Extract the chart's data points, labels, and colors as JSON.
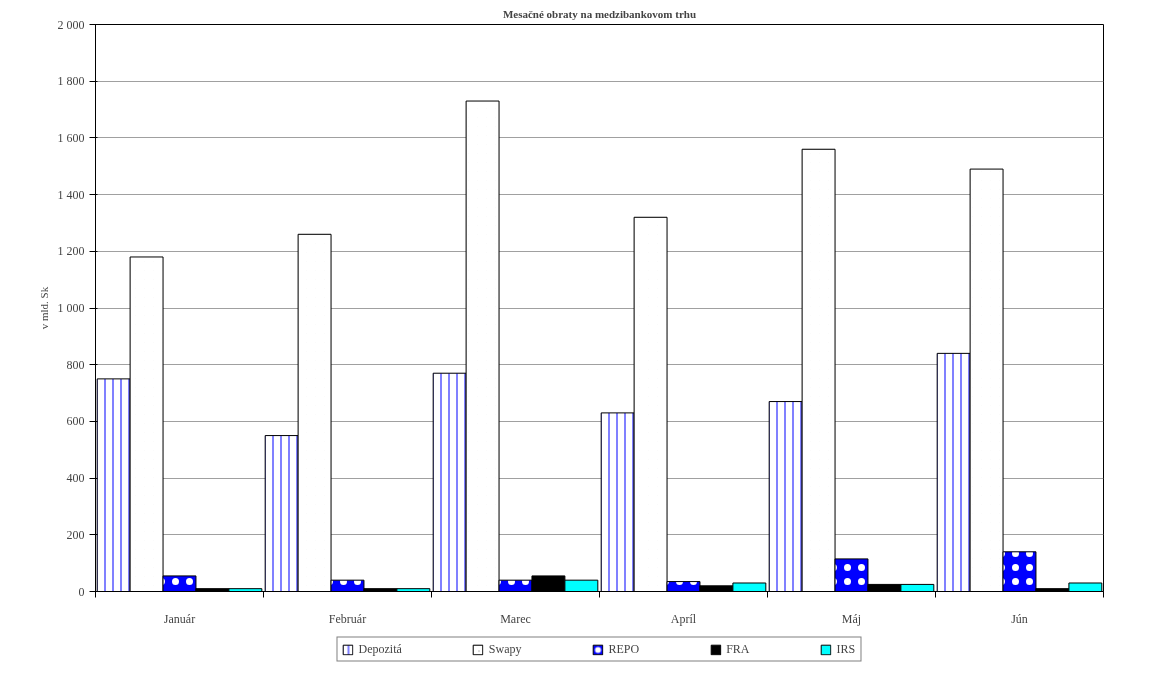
{
  "chart_data": {
    "type": "bar",
    "title": "Mesačné obraty na medzibankovom trhu",
    "ylabel": "v mld. Sk",
    "categories": [
      "Január",
      "Február",
      "Marec",
      "Apríl",
      "Máj",
      "Jún"
    ],
    "series": [
      {
        "name": "Depozitá",
        "color": "#8080ff",
        "values": [
          750,
          550,
          770,
          630,
          670,
          840
        ]
      },
      {
        "name": "Swapy",
        "color": "#000000",
        "values": [
          1180,
          1260,
          1730,
          1320,
          1560,
          1490
        ]
      },
      {
        "name": "REPO",
        "color": "#0000ff",
        "values": [
          55,
          40,
          40,
          35,
          115,
          140
        ]
      },
      {
        "name": "FRA",
        "color": "#000000",
        "values": [
          10,
          10,
          55,
          20,
          25,
          10
        ]
      },
      {
        "name": "IRS",
        "color": "#00ffff",
        "values": [
          10,
          10,
          40,
          30,
          25,
          30
        ]
      }
    ],
    "ylim": [
      0,
      2000
    ],
    "yticks": [
      0,
      200,
      400,
      600,
      800,
      {
        "value": 1000,
        "label": "1 000"
      },
      {
        "value": 1200,
        "label": "1 200"
      },
      {
        "value": 1400,
        "label": "1 400"
      },
      {
        "value": 1600,
        "label": "1 600"
      },
      {
        "value": 1800,
        "label": "1 800"
      },
      {
        "value": 2000,
        "label": "2 000"
      }
    ],
    "grid": "y",
    "legend": "bottom"
  }
}
